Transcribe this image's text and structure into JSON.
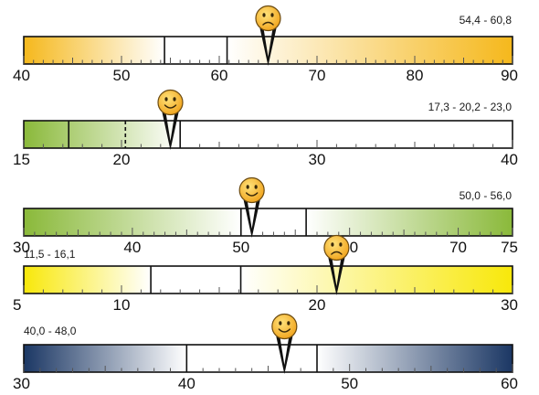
{
  "gauges": [
    {
      "range_label": "54,4 - 60,8",
      "min": 40,
      "max": 90,
      "tick_labels": [
        "40",
        "50",
        "60",
        "70",
        "80",
        "90"
      ],
      "tick_values": [
        40,
        50,
        60,
        70,
        80,
        90
      ],
      "minor_step": 1,
      "bounds": [
        54.4,
        60.8
      ],
      "dashed_bounds": [],
      "gradient": "left-dark",
      "color": "#f5b81c",
      "marker_value": 65,
      "marker_face": "sad-face-icon"
    },
    {
      "range_label": "17,3 - 20,2 - 23,0",
      "min": 15,
      "max": 40,
      "tick_labels": [
        "15",
        "20",
        "30",
        "40"
      ],
      "tick_values": [
        15,
        20,
        30,
        40
      ],
      "minor_step": 1,
      "bounds": [
        17.3,
        23.0
      ],
      "dashed_bounds": [
        20.2
      ],
      "gradient": "left-dark",
      "color": "#8ab93a",
      "marker_value": 22.5,
      "marker_face": "happy-face-icon"
    },
    {
      "range_label": "50,0 - 56,0",
      "min": 30,
      "max": 75,
      "tick_labels": [
        "30",
        "40",
        "50",
        "60",
        "70",
        "75"
      ],
      "tick_values": [
        30,
        40,
        50,
        60,
        70,
        75
      ],
      "minor_step": 1,
      "bounds": [
        50.0,
        56.0
      ],
      "dashed_bounds": [],
      "gradient": "both-dark",
      "color": "#8ab93a",
      "marker_value": 51,
      "marker_face": "happy-face-icon"
    },
    {
      "range_label": "11,5 - 16,1",
      "min": 5,
      "max": 30,
      "tick_labels": [
        "5",
        "10",
        "20",
        "30"
      ],
      "tick_values": [
        5,
        10,
        20,
        30
      ],
      "minor_step": 1,
      "bounds": [
        11.5,
        16.1
      ],
      "dashed_bounds": [],
      "gradient": "both-dark",
      "color": "#f8e80a",
      "marker_value": 21,
      "marker_face": "sad-face-icon"
    },
    {
      "range_label": "40,0 - 48,0",
      "min": 30,
      "max": 60,
      "tick_labels": [
        "30",
        "40",
        "50",
        "60"
      ],
      "tick_values": [
        30,
        40,
        50,
        60
      ],
      "minor_step": 1,
      "bounds": [
        40.0,
        48.0
      ],
      "dashed_bounds": [],
      "gradient": "both-dark",
      "color": "#1b3764",
      "marker_value": 46,
      "marker_face": "happy-face-icon"
    }
  ]
}
